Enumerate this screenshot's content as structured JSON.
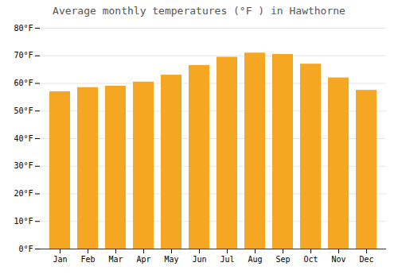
{
  "chart_data": {
    "type": "bar",
    "title": "Average monthly temperatures (°F ) in Hawthorne",
    "categories": [
      "Jan",
      "Feb",
      "Mar",
      "Apr",
      "May",
      "Jun",
      "Jul",
      "Aug",
      "Sep",
      "Oct",
      "Nov",
      "Dec"
    ],
    "values": [
      57,
      58.5,
      59,
      60.5,
      63,
      66.5,
      69.5,
      71,
      70.5,
      67,
      62,
      57.5
    ],
    "color": "#F5A623",
    "ylim": [
      0,
      80
    ],
    "yticks": [
      {
        "value": 0,
        "label": "0°F"
      },
      {
        "value": 10,
        "label": "10°F"
      },
      {
        "value": 20,
        "label": "20°F"
      },
      {
        "value": 30,
        "label": "30°F"
      },
      {
        "value": 40,
        "label": "40°F"
      },
      {
        "value": 50,
        "label": "50°F"
      },
      {
        "value": 60,
        "label": "60°F"
      },
      {
        "value": 70,
        "label": "70°F"
      },
      {
        "value": 80,
        "label": "80°F"
      }
    ],
    "grid": true
  }
}
